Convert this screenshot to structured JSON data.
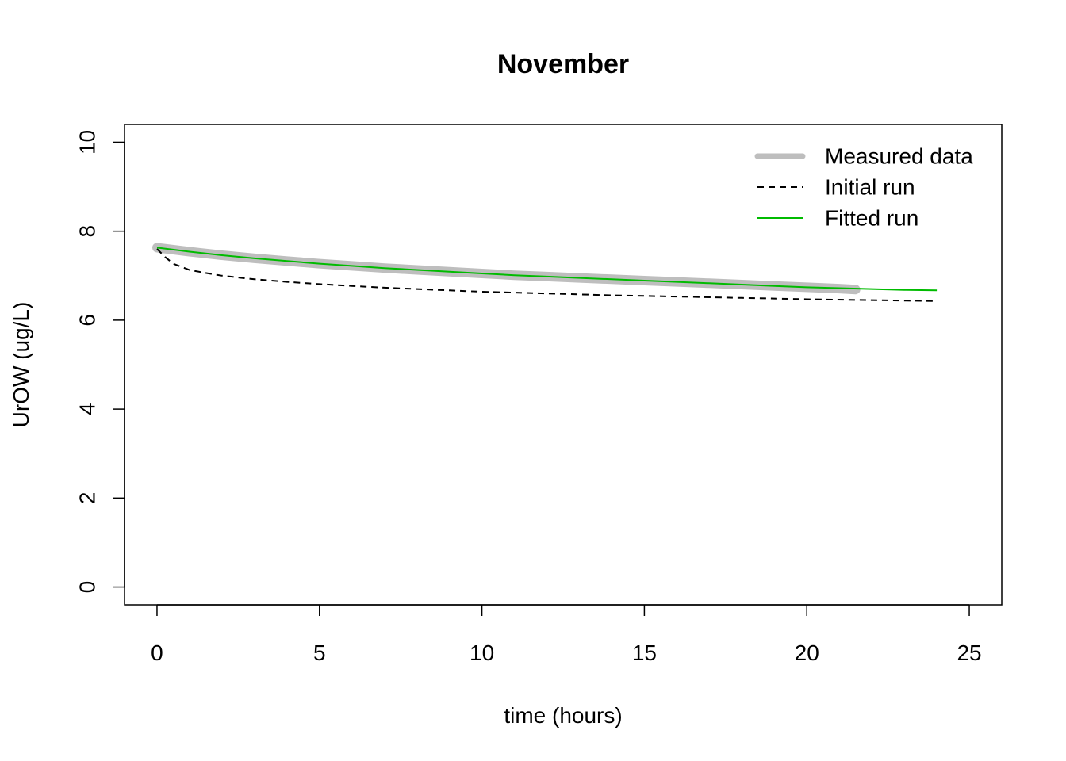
{
  "chart_data": {
    "type": "line",
    "title": "November",
    "xlabel": "time (hours)",
    "ylabel": "UrOW (ug/L)",
    "xlim": [
      -1,
      26
    ],
    "ylim": [
      -0.4,
      10.4
    ],
    "xticks": [
      0,
      5,
      10,
      15,
      20,
      25
    ],
    "yticks": [
      0,
      2,
      4,
      6,
      8,
      10
    ],
    "grid": false,
    "legend_position": "top-right",
    "series": [
      {
        "name": "Measured data",
        "color": "#bebebe",
        "style": "solid-thick",
        "x": [
          0,
          1,
          2,
          3,
          4,
          5,
          6,
          7,
          8,
          9,
          10,
          11,
          12,
          13,
          14,
          15,
          16,
          17,
          18,
          19,
          20,
          21,
          21.5
        ],
        "y": [
          7.63,
          7.54,
          7.46,
          7.39,
          7.33,
          7.27,
          7.22,
          7.17,
          7.13,
          7.09,
          7.05,
          7.01,
          6.98,
          6.95,
          6.92,
          6.89,
          6.86,
          6.83,
          6.8,
          6.77,
          6.74,
          6.71,
          6.69
        ]
      },
      {
        "name": "Initial run",
        "color": "#000000",
        "style": "dashed",
        "x": [
          0,
          0.25,
          0.5,
          1,
          1.5,
          2,
          3,
          4,
          5,
          6,
          7,
          8,
          9,
          10,
          12,
          14,
          16,
          18,
          20,
          22,
          24
        ],
        "y": [
          7.6,
          7.42,
          7.27,
          7.13,
          7.06,
          7.0,
          6.92,
          6.86,
          6.81,
          6.77,
          6.73,
          6.7,
          6.67,
          6.64,
          6.6,
          6.56,
          6.53,
          6.5,
          6.47,
          6.45,
          6.43
        ]
      },
      {
        "name": "Fitted run",
        "color": "#00bb00",
        "style": "solid",
        "x": [
          0,
          1,
          2,
          3,
          4,
          5,
          6,
          7,
          8,
          9,
          10,
          11,
          12,
          13,
          14,
          15,
          16,
          17,
          18,
          19,
          20,
          21,
          22,
          23,
          24
        ],
        "y": [
          7.63,
          7.54,
          7.46,
          7.39,
          7.33,
          7.27,
          7.22,
          7.17,
          7.13,
          7.09,
          7.05,
          7.01,
          6.98,
          6.95,
          6.92,
          6.89,
          6.86,
          6.83,
          6.8,
          6.77,
          6.74,
          6.72,
          6.7,
          6.68,
          6.67
        ]
      }
    ]
  }
}
